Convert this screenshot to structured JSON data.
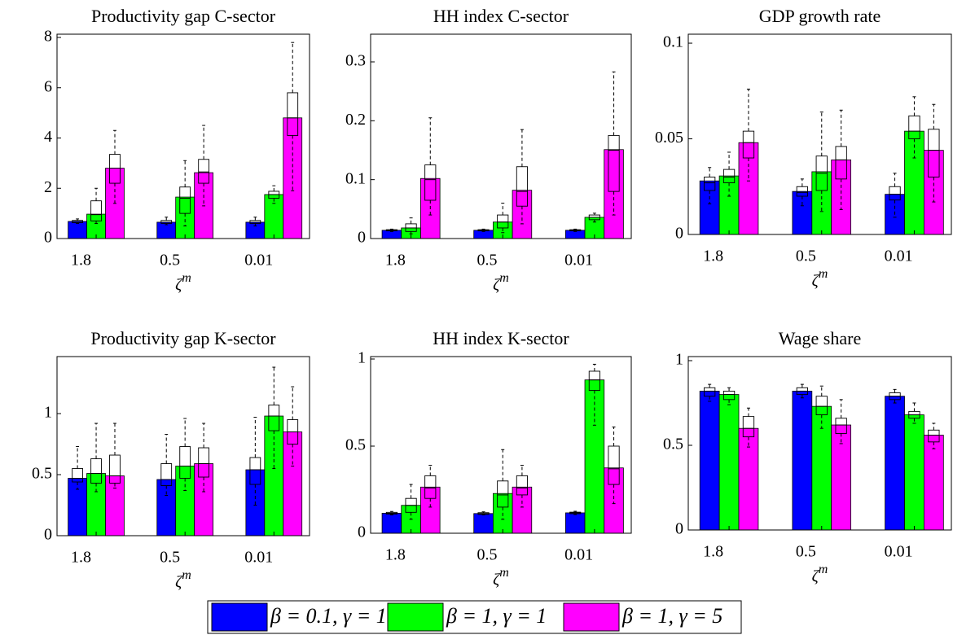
{
  "legend": [
    {
      "name": "β = 0.1, γ = 1",
      "color": "#0000ff"
    },
    {
      "name": "β = 1, γ = 1",
      "color": "#00ff00"
    },
    {
      "name": "β = 1, γ = 5",
      "color": "#ff00ff"
    }
  ],
  "chart_data": [
    {
      "type": "bar",
      "title": "Productivity gap C-sector",
      "xlabel": "ζ",
      "xlabel_superscript": "m",
      "categories": [
        "1.8",
        "0.5",
        "0.01"
      ],
      "ylim": [
        0,
        8.13
      ],
      "yticks": [
        0,
        2,
        4,
        6,
        8
      ],
      "series": [
        {
          "values": [
            0.68,
            0.65,
            0.65
          ],
          "boxes": [
            [
              0.6,
              0.63,
              0.68,
              0.72,
              0.78
            ],
            [
              0.55,
              0.6,
              0.65,
              0.72,
              0.85
            ],
            [
              0.5,
              0.6,
              0.65,
              0.72,
              0.85
            ]
          ]
        },
        {
          "values": [
            0.97,
            1.65,
            1.75
          ],
          "boxes": [
            [
              0.6,
              0.7,
              0.95,
              1.5,
              2.0
            ],
            [
              0.5,
              1.0,
              1.6,
              2.05,
              3.1
            ],
            [
              1.4,
              1.6,
              1.75,
              1.88,
              2.1
            ]
          ]
        },
        {
          "values": [
            2.8,
            2.62,
            4.8
          ],
          "boxes": [
            [
              1.4,
              2.2,
              2.8,
              3.35,
              4.3
            ],
            [
              1.3,
              2.2,
              2.65,
              3.15,
              4.5
            ],
            [
              1.9,
              4.1,
              4.8,
              5.8,
              7.8
            ]
          ]
        }
      ]
    },
    {
      "type": "bar",
      "title": "HH index C-sector",
      "xlabel": "ζ",
      "xlabel_superscript": "m",
      "categories": [
        "1.8",
        "0.5",
        "0.01"
      ],
      "ylim": [
        0,
        0.347
      ],
      "yticks": [
        0,
        0.1,
        0.2,
        0.3
      ],
      "series": [
        {
          "values": [
            0.014,
            0.014,
            0.014
          ],
          "boxes": [
            [
              0.012,
              0.013,
              0.014,
              0.015,
              0.016
            ],
            [
              0.012,
              0.013,
              0.014,
              0.015,
              0.016
            ],
            [
              0.012,
              0.013,
              0.014,
              0.015,
              0.016
            ]
          ]
        },
        {
          "values": [
            0.018,
            0.028,
            0.036
          ],
          "boxes": [
            [
              0.008,
              0.012,
              0.018,
              0.025,
              0.035
            ],
            [
              0.01,
              0.018,
              0.028,
              0.04,
              0.06
            ],
            [
              0.028,
              0.032,
              0.036,
              0.04,
              0.043
            ]
          ]
        },
        {
          "values": [
            0.102,
            0.082,
            0.151
          ],
          "boxes": [
            [
              0.04,
              0.065,
              0.1,
              0.125,
              0.205
            ],
            [
              0.025,
              0.055,
              0.08,
              0.122,
              0.185
            ],
            [
              0.04,
              0.08,
              0.15,
              0.175,
              0.283
            ]
          ]
        }
      ]
    },
    {
      "type": "bar",
      "title": "GDP growth rate",
      "xlabel": "ζ",
      "xlabel_superscript": "m",
      "categories": [
        "1.8",
        "0.5",
        "0.01"
      ],
      "ylim": [
        0,
        0.1047
      ],
      "yticks": [
        0,
        0.05,
        0.1
      ],
      "series": [
        {
          "values": [
            0.028,
            0.0225,
            0.021
          ],
          "boxes": [
            [
              0.016,
              0.023,
              0.027,
              0.03,
              0.035
            ],
            [
              0.015,
              0.02,
              0.022,
              0.025,
              0.029
            ],
            [
              0.009,
              0.018,
              0.021,
              0.025,
              0.032
            ]
          ]
        },
        {
          "values": [
            0.0306,
            0.0328,
            0.054
          ],
          "boxes": [
            [
              0.02,
              0.027,
              0.03,
              0.034,
              0.043
            ],
            [
              0.012,
              0.023,
              0.032,
              0.041,
              0.064
            ],
            [
              0.04,
              0.05,
              0.054,
              0.062,
              0.072
            ]
          ]
        },
        {
          "values": [
            0.048,
            0.039,
            0.044
          ],
          "boxes": [
            [
              0.028,
              0.04,
              0.048,
              0.054,
              0.076
            ],
            [
              0.013,
              0.029,
              0.039,
              0.046,
              0.065
            ],
            [
              0.017,
              0.03,
              0.044,
              0.055,
              0.068
            ]
          ]
        }
      ]
    },
    {
      "type": "bar",
      "title": "Productivity gap K-sector",
      "xlabel": "ζ",
      "xlabel_superscript": "m",
      "categories": [
        "1.8",
        "0.5",
        "0.01"
      ],
      "ylim": [
        0,
        1.467
      ],
      "yticks": [
        0,
        0.5,
        1
      ],
      "series": [
        {
          "values": [
            0.47,
            0.46,
            0.54
          ],
          "boxes": [
            [
              0.38,
              0.44,
              0.47,
              0.55,
              0.73
            ],
            [
              0.33,
              0.41,
              0.46,
              0.59,
              0.83
            ],
            [
              0.25,
              0.42,
              0.54,
              0.64,
              0.97
            ]
          ]
        },
        {
          "values": [
            0.51,
            0.57,
            0.98
          ],
          "boxes": [
            [
              0.36,
              0.43,
              0.51,
              0.63,
              0.92
            ],
            [
              0.37,
              0.47,
              0.57,
              0.73,
              0.96
            ],
            [
              0.55,
              0.86,
              0.98,
              1.07,
              1.38
            ]
          ]
        },
        {
          "values": [
            0.49,
            0.59,
            0.85
          ],
          "boxes": [
            [
              0.39,
              0.43,
              0.49,
              0.66,
              0.92
            ],
            [
              0.36,
              0.48,
              0.59,
              0.72,
              0.92
            ],
            [
              0.57,
              0.75,
              0.85,
              0.95,
              1.22
            ]
          ]
        }
      ]
    },
    {
      "type": "bar",
      "title": "HH index K-sector",
      "xlabel": "ζ",
      "xlabel_superscript": "m",
      "categories": [
        "1.8",
        "0.5",
        "0.01"
      ],
      "ylim": [
        0,
        1.014
      ],
      "yticks": [
        0,
        0.5,
        1
      ],
      "series": [
        {
          "values": [
            0.115,
            0.113,
            0.117
          ],
          "boxes": [
            [
              0.105,
              0.11,
              0.115,
              0.12,
              0.125
            ],
            [
              0.105,
              0.108,
              0.113,
              0.118,
              0.123
            ],
            [
              0.107,
              0.112,
              0.117,
              0.121,
              0.126
            ]
          ]
        },
        {
          "values": [
            0.16,
            0.228,
            0.88
          ],
          "boxes": [
            [
              0.08,
              0.12,
              0.16,
              0.2,
              0.28
            ],
            [
              0.08,
              0.15,
              0.22,
              0.3,
              0.48
            ],
            [
              0.62,
              0.82,
              0.88,
              0.93,
              0.97
            ]
          ]
        },
        {
          "values": [
            0.265,
            0.265,
            0.375
          ],
          "boxes": [
            [
              0.15,
              0.2,
              0.26,
              0.33,
              0.39
            ],
            [
              0.15,
              0.22,
              0.26,
              0.33,
              0.39
            ],
            [
              0.17,
              0.28,
              0.37,
              0.5,
              0.61
            ]
          ]
        }
      ]
    },
    {
      "type": "bar",
      "title": "Wage share",
      "xlabel": "ζ",
      "xlabel_superscript": "m",
      "categories": [
        "1.8",
        "0.5",
        "0.01"
      ],
      "ylim": [
        0,
        1.024
      ],
      "yticks": [
        0,
        0.5,
        1
      ],
      "series": [
        {
          "values": [
            0.82,
            0.82,
            0.79
          ],
          "boxes": [
            [
              0.76,
              0.79,
              0.82,
              0.84,
              0.86
            ],
            [
              0.78,
              0.8,
              0.82,
              0.84,
              0.86
            ],
            [
              0.75,
              0.77,
              0.79,
              0.81,
              0.83
            ]
          ]
        },
        {
          "values": [
            0.8,
            0.73,
            0.68
          ],
          "boxes": [
            [
              0.74,
              0.77,
              0.8,
              0.82,
              0.84
            ],
            [
              0.6,
              0.68,
              0.73,
              0.79,
              0.85
            ],
            [
              0.63,
              0.66,
              0.68,
              0.7,
              0.75
            ]
          ]
        },
        {
          "values": [
            0.6,
            0.62,
            0.56
          ],
          "boxes": [
            [
              0.49,
              0.55,
              0.6,
              0.67,
              0.72
            ],
            [
              0.51,
              0.57,
              0.62,
              0.66,
              0.77
            ],
            [
              0.48,
              0.52,
              0.56,
              0.59,
              0.63
            ]
          ]
        }
      ]
    }
  ]
}
